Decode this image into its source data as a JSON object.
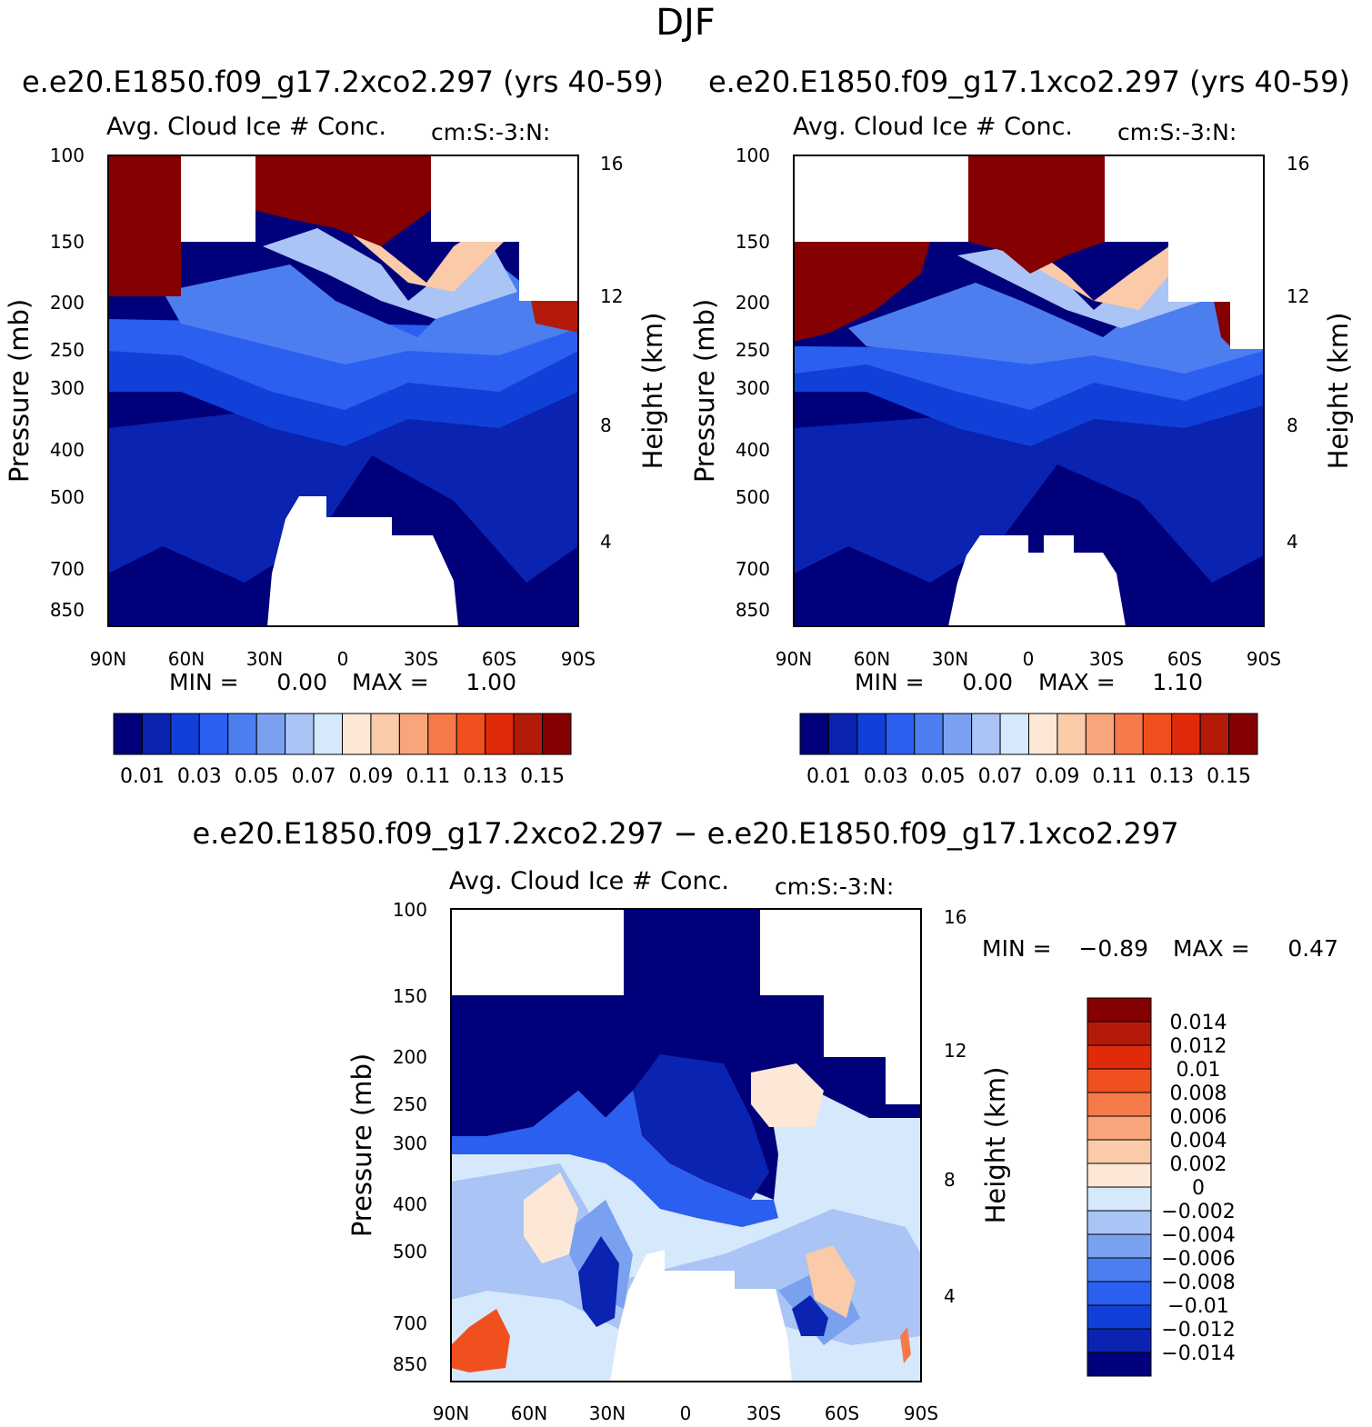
{
  "figure_title": "DJF",
  "case_a": "e.e20.E1850.f09_g17.2xco2.297",
  "case_b": "e.e20.E1850.f09_g17.1xco2.297",
  "diff_title": "e.e20.E1850.f09_g17.2xco2.297 − e.e20.E1850.f09_g17.1xco2.297",
  "colors": {
    "abs_levels": [
      "#00007a",
      "#0a23b0",
      "#1040d8",
      "#2b5ff0",
      "#4d7ef0",
      "#7aa0f0",
      "#a9c4f5",
      "#d6e8fb",
      "#fde8d8",
      "#fbcaa8",
      "#f8a57c",
      "#f57a4a",
      "#f0501e",
      "#e02a0a",
      "#b31a0a",
      "#850000"
    ],
    "diff_levels": [
      "#00007a",
      "#0a23b0",
      "#1040d8",
      "#2b5ff0",
      "#4d7ef0",
      "#7aa0f0",
      "#a9c4f5",
      "#d6e8fb",
      "#fde8d8",
      "#fbcaa8",
      "#f8a57c",
      "#f57a4a",
      "#f0501e",
      "#e02a0a",
      "#b31a0a",
      "#850000"
    ]
  },
  "chart_data": [
    {
      "type": "heatmap",
      "title": "e.e20.E1850.f09_g17.2xco2.297 (yrs 40-59)",
      "subtitle_left": "Avg. Cloud Ice # Conc.",
      "subtitle_right": "cm:S:-3:N:",
      "xlabel": "",
      "ylabel": "Pressure (mb)",
      "ylabel_right": "Height (km)",
      "x_ticks": [
        "90N",
        "60N",
        "30N",
        "0",
        "30S",
        "60S",
        "90S"
      ],
      "y_ticks": [
        "100",
        "150",
        "200",
        "250",
        "300",
        "400",
        "500",
        "700",
        "850"
      ],
      "y_ticks_right": [
        "16",
        "12",
        "8",
        "4"
      ],
      "min_label": "MIN =",
      "min_value": "0.00",
      "max_label": "MAX =",
      "max_value": "1.00",
      "colorbar_labels": [
        "0.01",
        "0.03",
        "0.05",
        "0.07",
        "0.09",
        "0.11",
        "0.13",
        "0.15"
      ]
    },
    {
      "type": "heatmap",
      "title": "e.e20.E1850.f09_g17.1xco2.297 (yrs 40-59)",
      "subtitle_left": "Avg. Cloud Ice # Conc.",
      "subtitle_right": "cm:S:-3:N:",
      "xlabel": "",
      "ylabel": "Pressure (mb)",
      "ylabel_right": "Height (km)",
      "x_ticks": [
        "90N",
        "60N",
        "30N",
        "0",
        "30S",
        "60S",
        "90S"
      ],
      "y_ticks": [
        "100",
        "150",
        "200",
        "250",
        "300",
        "400",
        "500",
        "700",
        "850"
      ],
      "y_ticks_right": [
        "16",
        "12",
        "8",
        "4"
      ],
      "min_label": "MIN =",
      "min_value": "0.00",
      "max_label": "MAX =",
      "max_value": "1.10",
      "colorbar_labels": [
        "0.01",
        "0.03",
        "0.05",
        "0.07",
        "0.09",
        "0.11",
        "0.13",
        "0.15"
      ]
    },
    {
      "type": "heatmap",
      "title": "e.e20.E1850.f09_g17.2xco2.297 − e.e20.E1850.f09_g17.1xco2.297",
      "subtitle_left": "Avg. Cloud Ice # Conc.",
      "subtitle_right": "cm:S:-3:N:",
      "xlabel": "",
      "ylabel": "Pressure (mb)",
      "ylabel_right": "Height (km)",
      "x_ticks": [
        "90N",
        "60N",
        "30N",
        "0",
        "30S",
        "60S",
        "90S"
      ],
      "y_ticks": [
        "100",
        "150",
        "200",
        "250",
        "300",
        "400",
        "500",
        "700",
        "850"
      ],
      "y_ticks_right": [
        "16",
        "12",
        "8",
        "4"
      ],
      "min_label": "MIN =",
      "min_value": "−0.89",
      "max_label": "MAX =",
      "max_value": "0.47",
      "colorbar_labels": [
        "0.014",
        "0.012",
        "0.01",
        "0.008",
        "0.006",
        "0.004",
        "0.002",
        "0",
        "−0.002",
        "−0.004",
        "−0.006",
        "−0.008",
        "−0.01",
        "−0.012",
        "−0.014"
      ]
    }
  ]
}
